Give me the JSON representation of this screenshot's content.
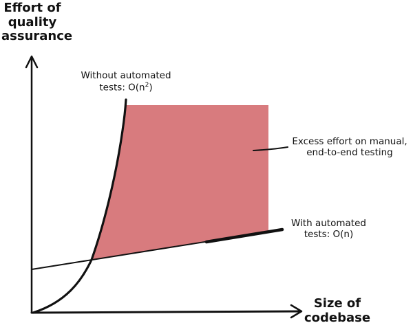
{
  "diagram": {
    "y_axis_label": [
      "Effort of",
      "quality",
      "assurance"
    ],
    "x_axis_label": [
      "Size of",
      "codebase"
    ],
    "label_without_tests_line1": "Without automated",
    "label_without_tests_line2_prefix": "tests: O(n",
    "label_without_tests_exponent": "2",
    "label_without_tests_line2_suffix": ")",
    "label_with_tests": [
      "With automated",
      "tests: O(n)"
    ],
    "label_excess": [
      "Excess effort on manual,",
      "end-to-end testing"
    ],
    "colors": {
      "ink": "#111111",
      "excess_fill": "#d87b7e"
    }
  }
}
